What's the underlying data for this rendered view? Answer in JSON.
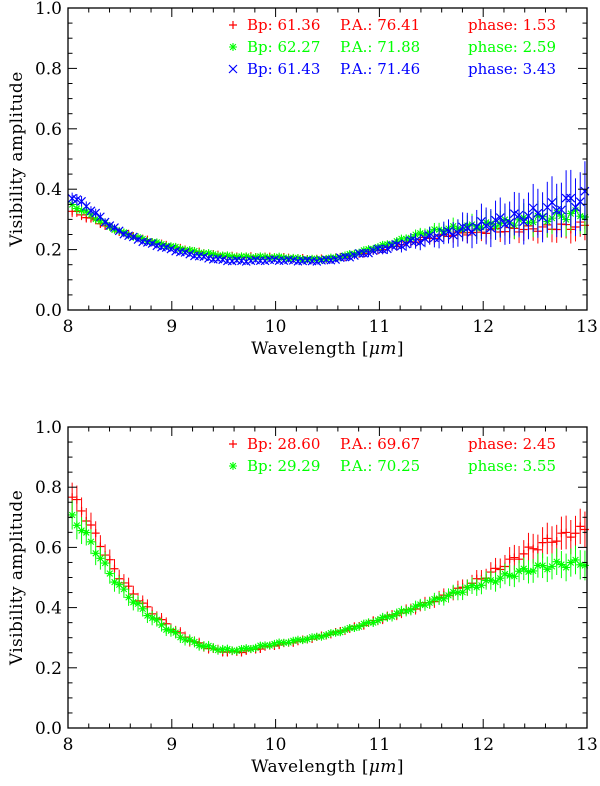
{
  "chart_data": [
    {
      "type": "scatter",
      "title": "",
      "xlabel": "Wavelength [",
      "xlabel_unit": "μm",
      "xlabel_close": "]",
      "ylabel": "Visibility amplitude",
      "xlim": [
        8,
        13
      ],
      "ylim": [
        0,
        1.0
      ],
      "xticks": [
        8,
        9,
        10,
        11,
        12,
        13
      ],
      "xtick_labels": [
        "8",
        "9",
        "10",
        "11",
        "12",
        "13"
      ],
      "yticks": [
        0,
        0.2,
        0.4,
        0.6,
        0.8,
        1.0
      ],
      "ytick_labels": [
        "0.0",
        "0.2",
        "0.4",
        "0.6",
        "0.8",
        "1.0"
      ],
      "series": [
        {
          "name": "Bp: 61.36 P.A.: 76.41 phase: 1.53",
          "bp_label": "Bp: 61.36",
          "pa_label": "P.A.: 76.41",
          "phase_label": "phase: 1.53",
          "marker": "plus",
          "color": "#ff0000",
          "x": [
            8.0,
            8.5,
            9.0,
            9.5,
            10.0,
            10.5,
            11.0,
            11.5,
            12.0,
            12.5,
            13.0
          ],
          "y": [
            0.33,
            0.26,
            0.21,
            0.18,
            0.175,
            0.17,
            0.2,
            0.24,
            0.26,
            0.27,
            0.28
          ],
          "err": [
            0.02,
            0.01,
            0.008,
            0.008,
            0.008,
            0.008,
            0.01,
            0.02,
            0.03,
            0.04,
            0.05
          ]
        },
        {
          "name": "Bp: 62.27 P.A.: 71.88 phase: 2.59",
          "bp_label": "Bp: 62.27",
          "pa_label": "P.A.: 71.88",
          "phase_label": "phase: 2.59",
          "marker": "asterisk",
          "color": "#00ff00",
          "x": [
            8.0,
            8.5,
            9.0,
            9.5,
            10.0,
            10.5,
            11.0,
            11.5,
            12.0,
            12.5,
            13.0
          ],
          "y": [
            0.35,
            0.26,
            0.21,
            0.18,
            0.175,
            0.17,
            0.21,
            0.26,
            0.28,
            0.3,
            0.32
          ],
          "err": [
            0.02,
            0.01,
            0.008,
            0.008,
            0.008,
            0.008,
            0.01,
            0.02,
            0.04,
            0.05,
            0.06
          ]
        },
        {
          "name": "Bp: 61.43 P.A.: 71.46 phase: 3.43",
          "bp_label": "Bp: 61.43",
          "pa_label": "P.A.: 71.46",
          "phase_label": "phase: 3.43",
          "marker": "cross",
          "color": "#0000ff",
          "x": [
            8.0,
            8.5,
            9.0,
            9.5,
            10.0,
            10.5,
            11.0,
            11.5,
            12.0,
            12.5,
            13.0
          ],
          "y": [
            0.38,
            0.26,
            0.2,
            0.165,
            0.165,
            0.165,
            0.2,
            0.24,
            0.28,
            0.32,
            0.37
          ],
          "err": [
            0.02,
            0.01,
            0.008,
            0.008,
            0.008,
            0.008,
            0.015,
            0.03,
            0.06,
            0.08,
            0.1
          ]
        }
      ]
    },
    {
      "type": "scatter",
      "title": "",
      "xlabel": "Wavelength [",
      "xlabel_unit": "μm",
      "xlabel_close": "]",
      "ylabel": "Visibility amplitude",
      "xlim": [
        8,
        13
      ],
      "ylim": [
        0,
        1.0
      ],
      "xticks": [
        8,
        9,
        10,
        11,
        12,
        13
      ],
      "xtick_labels": [
        "8",
        "9",
        "10",
        "11",
        "12",
        "13"
      ],
      "yticks": [
        0,
        0.2,
        0.4,
        0.6,
        0.8,
        1.0
      ],
      "ytick_labels": [
        "0.0",
        "0.2",
        "0.4",
        "0.6",
        "0.8",
        "1.0"
      ],
      "series": [
        {
          "name": "Bp: 28.60 P.A.: 69.67 phase: 2.45",
          "bp_label": "Bp: 28.60",
          "pa_label": "P.A.: 69.67",
          "phase_label": "phase: 2.45",
          "marker": "plus",
          "color": "#ff0000",
          "x": [
            8.0,
            8.5,
            9.0,
            9.5,
            10.0,
            10.5,
            11.0,
            11.5,
            12.0,
            12.5,
            13.0
          ],
          "y": [
            0.78,
            0.5,
            0.33,
            0.255,
            0.275,
            0.31,
            0.36,
            0.42,
            0.5,
            0.6,
            0.66
          ],
          "err": [
            0.05,
            0.03,
            0.02,
            0.015,
            0.01,
            0.01,
            0.015,
            0.02,
            0.03,
            0.05,
            0.06
          ]
        },
        {
          "name": "Bp: 29.29 P.A.: 70.25 phase: 3.55",
          "bp_label": "Bp: 29.29",
          "pa_label": "P.A.: 70.25",
          "phase_label": "phase: 3.55",
          "marker": "asterisk",
          "color": "#00ff00",
          "x": [
            8.0,
            8.5,
            9.0,
            9.5,
            10.0,
            10.5,
            11.0,
            11.5,
            12.0,
            12.5,
            13.0
          ],
          "y": [
            0.71,
            0.47,
            0.32,
            0.26,
            0.28,
            0.31,
            0.36,
            0.42,
            0.48,
            0.53,
            0.55
          ],
          "err": [
            0.05,
            0.03,
            0.02,
            0.015,
            0.01,
            0.01,
            0.015,
            0.02,
            0.03,
            0.04,
            0.05
          ]
        }
      ]
    }
  ]
}
